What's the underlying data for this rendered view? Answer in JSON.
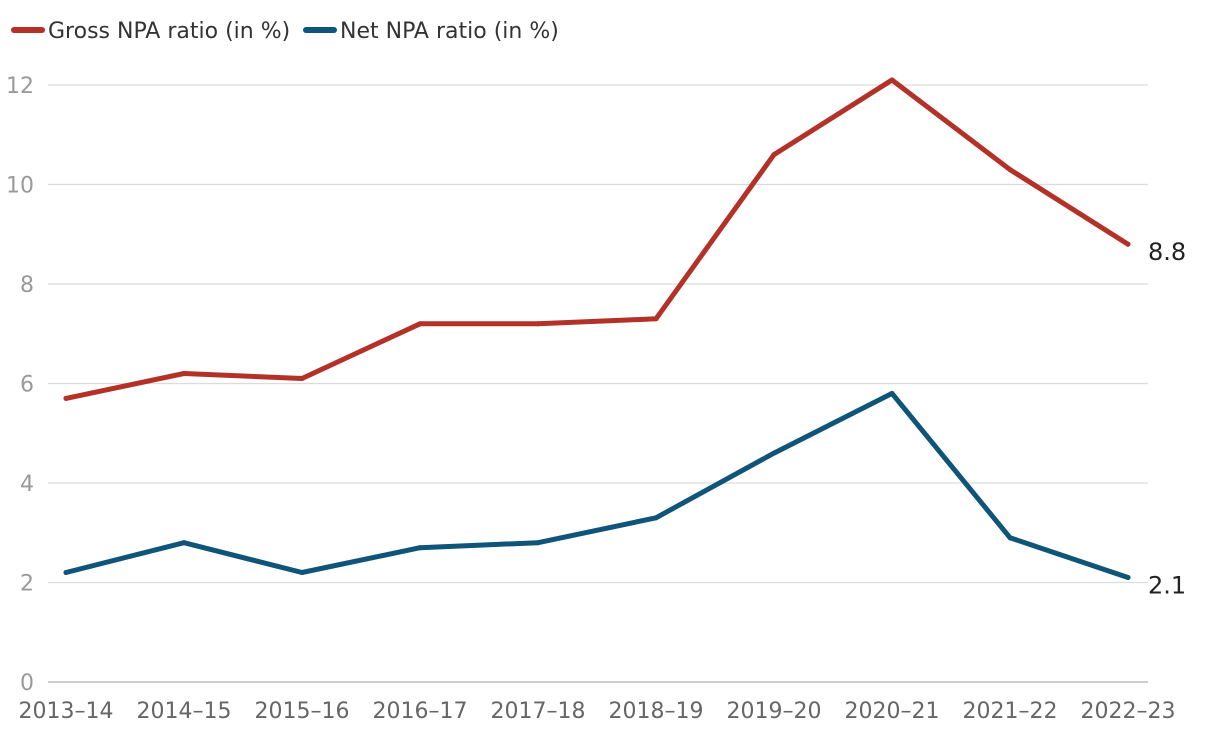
{
  "chart_data": {
    "type": "line",
    "title": "",
    "xlabel": "",
    "ylabel": "",
    "categories": [
      "2013–14",
      "2014–15",
      "2015–16",
      "2016–17",
      "2017–18",
      "2018–19",
      "2019–20",
      "2020–21",
      "2021–22",
      "2022–23"
    ],
    "ylim": [
      0,
      12
    ],
    "yticks": [
      0,
      2,
      4,
      6,
      8,
      10,
      12
    ],
    "ytick_labels": [
      "0",
      "2",
      "4",
      "6",
      "8",
      "10",
      "12"
    ],
    "grid": true,
    "legend_position": "top-left",
    "series": [
      {
        "name": "Gross NPA ratio (in %)",
        "color": "#b33127",
        "values": [
          5.7,
          6.2,
          6.1,
          7.2,
          7.2,
          7.3,
          10.6,
          12.1,
          10.3,
          8.8
        ],
        "end_label": "8.8"
      },
      {
        "name": "Net NPA ratio (in %)",
        "color": "#0f5479",
        "values": [
          2.2,
          2.8,
          2.2,
          2.7,
          2.8,
          3.3,
          4.6,
          5.8,
          2.9,
          2.1
        ],
        "end_label": "2.1"
      }
    ]
  }
}
